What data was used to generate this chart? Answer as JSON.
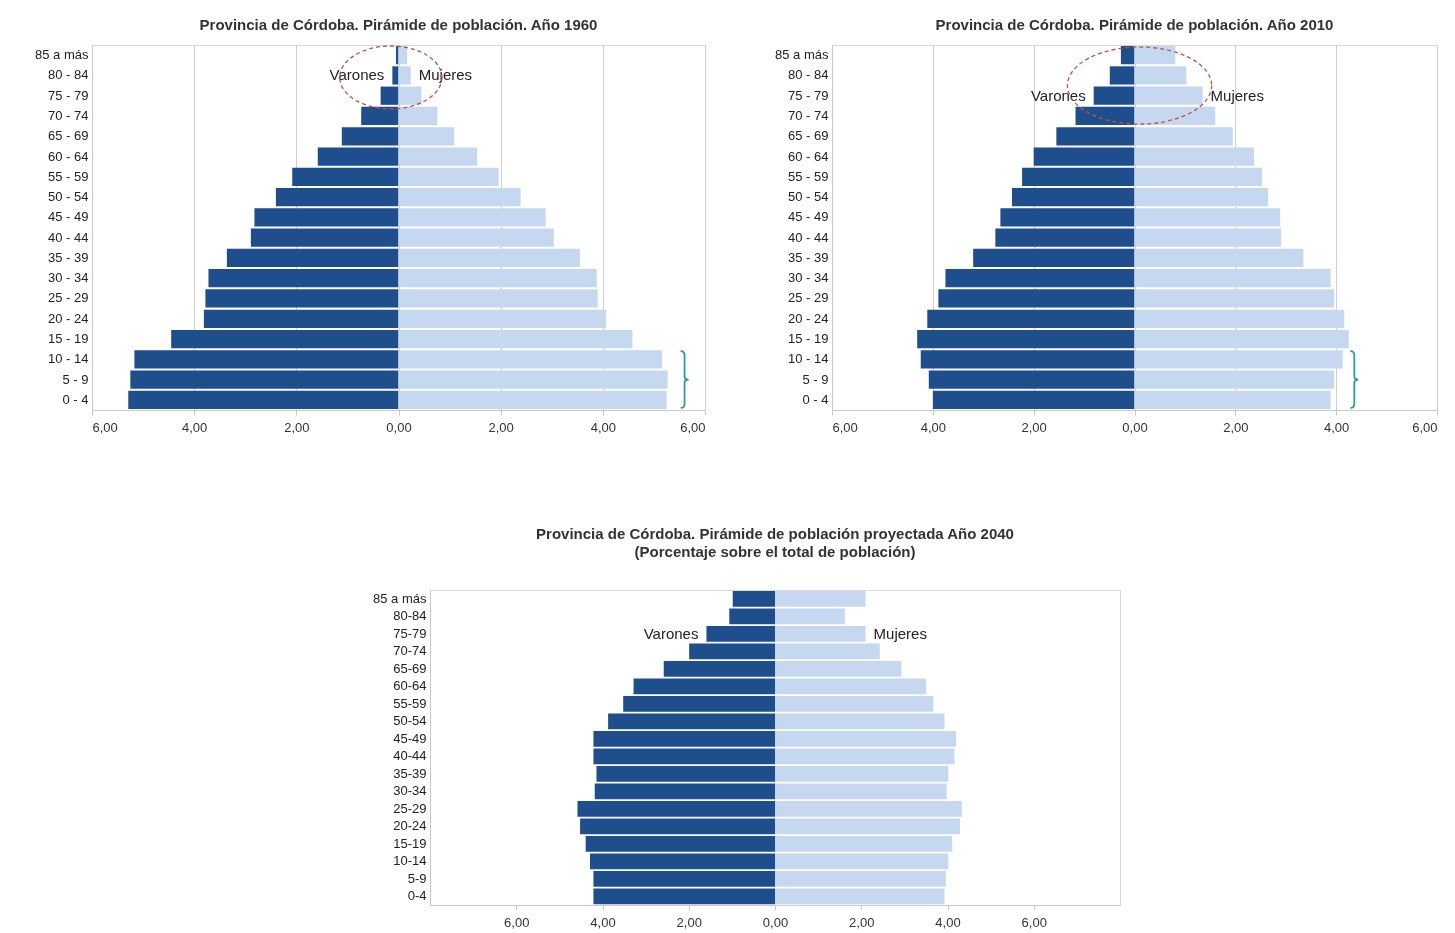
{
  "chart_data": [
    {
      "type": "bar",
      "orientation": "horizontal",
      "stacked": true,
      "title": "Provincia de Córdoba. Pirámide de población.  Año 1960",
      "categories": [
        "85 a más",
        "80 - 84",
        "75 - 79",
        "70 - 74",
        "65 - 69",
        "60 - 64",
        "55 - 59",
        "50 - 54",
        "45 - 49",
        "40 - 44",
        "35 - 39",
        "30 - 34",
        "25 - 29",
        "20 - 24",
        "15 - 19",
        "10 - 14",
        "5 - 9",
        "0 - 4"
      ],
      "series": [
        {
          "name": "Varones",
          "color": "#1f4e8c",
          "values": [
            -0.05,
            -0.12,
            -0.35,
            -0.73,
            -1.11,
            -1.58,
            -2.08,
            -2.4,
            -2.82,
            -2.89,
            -3.36,
            -3.72,
            -3.78,
            -3.81,
            -4.45,
            -5.17,
            -5.25,
            -5.29
          ]
        },
        {
          "name": "Mujeres",
          "color": "#c5d8f0",
          "values": [
            0.17,
            0.24,
            0.45,
            0.76,
            1.09,
            1.54,
            1.96,
            2.39,
            2.88,
            3.04,
            3.55,
            3.88,
            3.9,
            4.06,
            4.58,
            5.16,
            5.27,
            5.25
          ]
        }
      ],
      "xlim": [
        -6,
        6
      ],
      "xticks": [
        {
          "value": -6,
          "label": "6,00"
        },
        {
          "value": -4,
          "label": "4,00"
        },
        {
          "value": -2,
          "label": "2,00"
        },
        {
          "value": 0,
          "label": "0,00"
        },
        {
          "value": 2,
          "label": "2,00"
        },
        {
          "value": 4,
          "label": "4,00"
        },
        {
          "value": 6,
          "label": "6,00"
        }
      ],
      "grid": "x"
    },
    {
      "type": "bar",
      "orientation": "horizontal",
      "stacked": true,
      "title": "Provincia de Córdoba. Pirámide de población.  Año 2010",
      "categories": [
        "85 a más",
        "80 - 84",
        "75 - 79",
        "70 - 74",
        "65 - 69",
        "60 - 64",
        "55 - 59",
        "50 - 54",
        "45 - 49",
        "40 - 44",
        "35 - 39",
        "30 - 34",
        "25 - 29",
        "20 - 24",
        "15 - 19",
        "10 - 14",
        "5 - 9",
        "0 - 4"
      ],
      "series": [
        {
          "name": "Varones",
          "color": "#1f4e8c",
          "values": [
            -0.27,
            -0.49,
            -0.81,
            -1.17,
            -1.55,
            -2.0,
            -2.23,
            -2.43,
            -2.66,
            -2.76,
            -3.2,
            -3.75,
            -3.89,
            -4.11,
            -4.31,
            -4.24,
            -4.08,
            -4.0
          ]
        },
        {
          "name": "Mujeres",
          "color": "#c5d8f0",
          "values": [
            0.81,
            1.03,
            1.35,
            1.6,
            1.95,
            2.37,
            2.53,
            2.65,
            2.89,
            2.91,
            3.35,
            3.89,
            3.96,
            4.16,
            4.25,
            4.13,
            3.96,
            3.89
          ]
        }
      ],
      "xlim": [
        -6,
        6
      ],
      "xticks": [
        {
          "value": -6,
          "label": "6,00"
        },
        {
          "value": -4,
          "label": "4,00"
        },
        {
          "value": -2,
          "label": "2,00"
        },
        {
          "value": 0,
          "label": "0,00"
        },
        {
          "value": 2,
          "label": "2,00"
        },
        {
          "value": 4,
          "label": "4,00"
        },
        {
          "value": 6,
          "label": "6,00"
        }
      ],
      "grid": "x"
    },
    {
      "type": "bar",
      "orientation": "horizontal",
      "stacked": true,
      "title": "Provincia de Córdoba. Pirámide de población  proyectada Año 2040",
      "subtitle": "(Porcentaje sobre el total de población)",
      "categories": [
        "85 a más",
        "80-84",
        "75-79",
        "70-74",
        "65-69",
        "60-64",
        "55-59",
        "50-54",
        "45-49",
        "40-44",
        "35-39",
        "30-34",
        "25-29",
        "20-24",
        "15-19",
        "10-14",
        "5-9",
        "0-4"
      ],
      "series": [
        {
          "name": "Varones",
          "color": "#1f4e8c",
          "values": [
            -0.98,
            -1.06,
            -1.59,
            -1.99,
            -2.58,
            -3.28,
            -3.52,
            -3.87,
            -4.21,
            -4.21,
            -4.14,
            -4.18,
            -4.58,
            -4.52,
            -4.39,
            -4.29,
            -4.21,
            -4.21
          ]
        },
        {
          "name": "Mujeres",
          "color": "#c5d8f0",
          "values": [
            2.1,
            1.62,
            2.1,
            2.43,
            2.93,
            3.5,
            3.67,
            3.93,
            4.2,
            4.16,
            4.02,
            3.98,
            4.33,
            4.29,
            4.11,
            4.02,
            3.96,
            3.93
          ]
        }
      ],
      "xlim": [
        -8,
        8
      ],
      "xticks": [
        {
          "value": -6,
          "label": "6,00"
        },
        {
          "value": -4,
          "label": "4,00"
        },
        {
          "value": -2,
          "label": "2,00"
        },
        {
          "value": 0,
          "label": "0,00"
        },
        {
          "value": 2,
          "label": "2,00"
        },
        {
          "value": 4,
          "label": "4,00"
        },
        {
          "value": 6,
          "label": "6,00"
        }
      ]
    }
  ]
}
